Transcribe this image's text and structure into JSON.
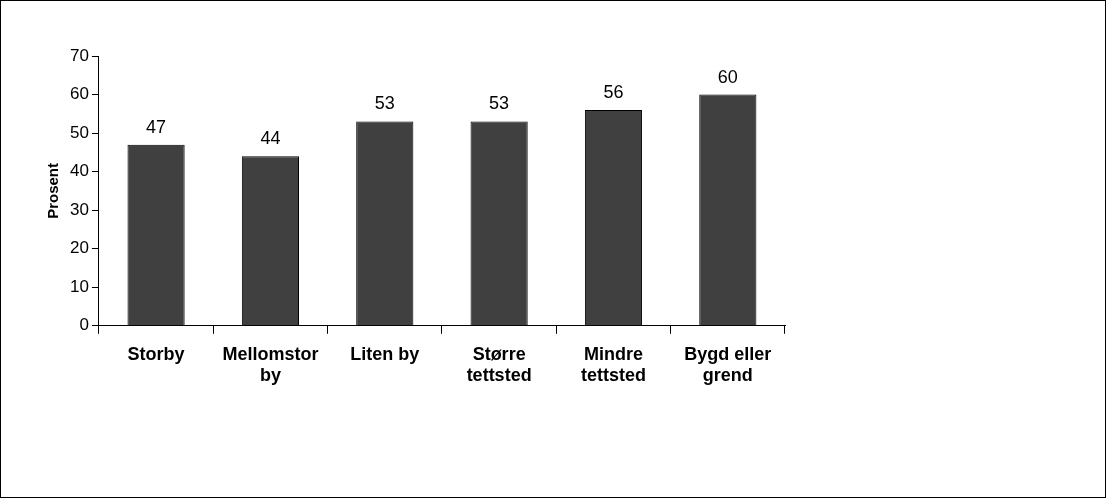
{
  "chart_data": {
    "type": "bar",
    "ylabel": "Prosent",
    "categories": [
      "Storby",
      "Mellomstor by",
      "Liten by",
      "Større tettsted",
      "Mindre tettsted",
      "Bygd eller grend"
    ],
    "values": [
      47,
      44,
      53,
      53,
      56,
      60
    ],
    "color": "#404040",
    "ylim": [
      0,
      70
    ],
    "yticks": [
      0,
      10,
      20,
      30,
      40,
      50,
      60,
      70
    ],
    "grid": false,
    "data_labels": true,
    "legend": false
  }
}
